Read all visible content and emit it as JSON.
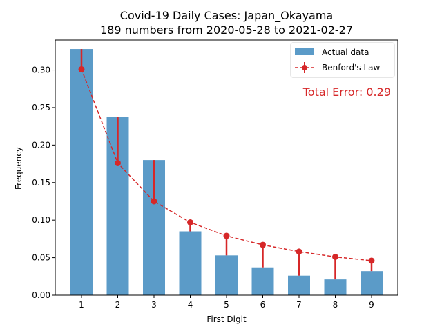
{
  "chart_data": {
    "type": "bar",
    "title": "Covid-19 Daily Cases: Japan_Okayama",
    "subtitle": "189 numbers from 2020-05-28 to 2021-02-27",
    "xlabel": "First Digit",
    "ylabel": "Frequency",
    "categories": [
      "1",
      "2",
      "3",
      "4",
      "5",
      "6",
      "7",
      "8",
      "9"
    ],
    "ylim": [
      0,
      0.34
    ],
    "yticks": [
      "0.00",
      "0.05",
      "0.10",
      "0.15",
      "0.20",
      "0.25",
      "0.30"
    ],
    "series": [
      {
        "name": "Actual data",
        "kind": "bar",
        "color": "#5b9bc8",
        "values": [
          0.328,
          0.238,
          0.18,
          0.085,
          0.053,
          0.037,
          0.026,
          0.021,
          0.032
        ]
      },
      {
        "name": "Benford's Law",
        "kind": "line",
        "color": "#d62728",
        "style": "dashed",
        "marker": "circle",
        "values": [
          0.301,
          0.176,
          0.125,
          0.097,
          0.079,
          0.067,
          0.058,
          0.051,
          0.046
        ]
      }
    ],
    "legend_position": "top-right",
    "annotation": "Total Error: 0.29",
    "grid": false
  }
}
